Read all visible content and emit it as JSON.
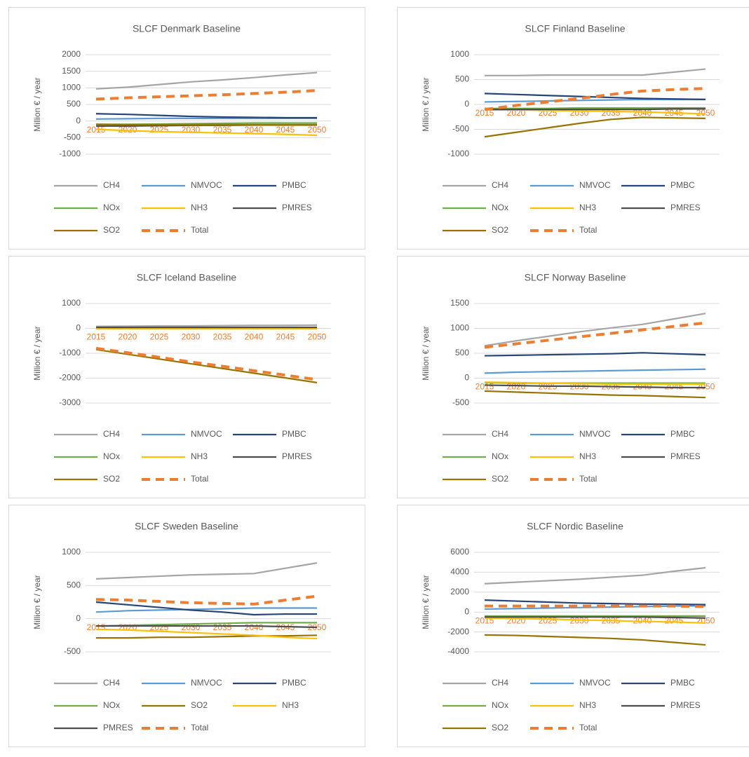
{
  "chart_data": [
    {
      "type": "line",
      "title": "SLCF Denmark Baseline",
      "y_label": "Million € / year",
      "categories": [
        "2015",
        "2020",
        "2025",
        "2030",
        "2035",
        "2040",
        "2045",
        "2050"
      ],
      "ylim": [
        -1000,
        2000
      ],
      "yticks": [
        -1000,
        -500,
        0,
        500,
        1000,
        1500,
        2000
      ],
      "grid": true,
      "category_label_color": "#ed7d31",
      "series": [
        {
          "name": "CH4",
          "color": "#a5a5a5",
          "values": [
            970,
            1020,
            1100,
            1180,
            1240,
            1310,
            1390,
            1460
          ]
        },
        {
          "name": "NMVOC",
          "color": "#5b9bd5",
          "values": [
            60,
            70,
            80,
            80,
            80,
            80,
            80,
            80
          ]
        },
        {
          "name": "PMBC",
          "color": "#264478",
          "values": [
            220,
            200,
            170,
            140,
            120,
            110,
            100,
            100
          ]
        },
        {
          "name": "NOx",
          "color": "#70ad47",
          "values": [
            -100,
            -100,
            -90,
            -80,
            -70,
            -60,
            -60,
            -60
          ]
        },
        {
          "name": "NH3",
          "color": "#ffc000",
          "values": [
            -250,
            -290,
            -320,
            -340,
            -360,
            -380,
            -400,
            -430
          ]
        },
        {
          "name": "PMRES",
          "color": "#4d4d4d",
          "values": [
            -150,
            -150,
            -140,
            -130,
            -130,
            -120,
            -120,
            -120
          ]
        },
        {
          "name": "SO2",
          "color": "#997300",
          "values": [
            -100,
            -110,
            -110,
            -110,
            -110,
            -110,
            -110,
            -110
          ]
        },
        {
          "name": "Total",
          "color": "#ed7d31",
          "dashed": true,
          "values": [
            660,
            700,
            730,
            760,
            790,
            830,
            870,
            920
          ]
        }
      ]
    },
    {
      "type": "line",
      "title": "SLCF Finland Baseline",
      "y_label": "Million € / year",
      "categories": [
        "2015",
        "2020",
        "2025",
        "2030",
        "2035",
        "2040",
        "2045",
        "2050"
      ],
      "ylim": [
        -1000,
        1000
      ],
      "yticks": [
        -1000,
        -500,
        0,
        500,
        1000
      ],
      "grid": true,
      "category_label_color": "#ed7d31",
      "series": [
        {
          "name": "CH4",
          "color": "#a5a5a5",
          "values": [
            580,
            580,
            590,
            590,
            590,
            590,
            650,
            710
          ]
        },
        {
          "name": "NMVOC",
          "color": "#5b9bd5",
          "values": [
            50,
            60,
            70,
            80,
            90,
            100,
            100,
            100
          ]
        },
        {
          "name": "PMBC",
          "color": "#264478",
          "values": [
            220,
            200,
            180,
            160,
            140,
            120,
            110,
            100
          ]
        },
        {
          "name": "NOx",
          "color": "#70ad47",
          "values": [
            -80,
            -80,
            -80,
            -70,
            -70,
            -70,
            -70,
            -70
          ]
        },
        {
          "name": "NH3",
          "color": "#ffc000",
          "values": [
            -110,
            -110,
            -120,
            -130,
            -140,
            -150,
            -170,
            -190
          ]
        },
        {
          "name": "PMRES",
          "color": "#4d4d4d",
          "values": [
            -100,
            -100,
            -100,
            -100,
            -100,
            -100,
            -90,
            -90
          ]
        },
        {
          "name": "SO2",
          "color": "#997300",
          "values": [
            -650,
            -560,
            -470,
            -380,
            -300,
            -260,
            -270,
            -280
          ]
        },
        {
          "name": "Total",
          "color": "#ed7d31",
          "dashed": true,
          "values": [
            -100,
            -20,
            50,
            120,
            200,
            270,
            300,
            320
          ]
        }
      ]
    },
    {
      "type": "line",
      "title": "SLCF Iceland Baseline",
      "y_label": "Million € / year",
      "categories": [
        "2015",
        "2020",
        "2025",
        "2030",
        "2035",
        "2040",
        "2045",
        "2050"
      ],
      "ylim": [
        -3000,
        1000
      ],
      "yticks": [
        -3000,
        -2000,
        -1000,
        0,
        1000
      ],
      "grid": true,
      "category_label_color": "#ed7d31",
      "series": [
        {
          "name": "CH4",
          "color": "#a5a5a5",
          "values": [
            80,
            90,
            100,
            100,
            110,
            120,
            120,
            130
          ]
        },
        {
          "name": "NMVOC",
          "color": "#5b9bd5",
          "values": [
            10,
            10,
            10,
            10,
            10,
            10,
            10,
            10
          ]
        },
        {
          "name": "PMBC",
          "color": "#264478",
          "values": [
            20,
            20,
            20,
            20,
            20,
            20,
            20,
            20
          ]
        },
        {
          "name": "NOx",
          "color": "#70ad47",
          "values": [
            -10,
            -10,
            -10,
            -10,
            -10,
            -10,
            -10,
            -10
          ]
        },
        {
          "name": "NH3",
          "color": "#ffc000",
          "values": [
            -20,
            -20,
            -20,
            -20,
            -20,
            -20,
            -20,
            -20
          ]
        },
        {
          "name": "PMRES",
          "color": "#4d4d4d",
          "values": [
            40,
            40,
            40,
            40,
            40,
            40,
            40,
            40
          ]
        },
        {
          "name": "SO2",
          "color": "#997300",
          "values": [
            -850,
            -1040,
            -1230,
            -1420,
            -1610,
            -1800,
            -1990,
            -2180
          ]
        },
        {
          "name": "Total",
          "color": "#ed7d31",
          "dashed": true,
          "values": [
            -800,
            -980,
            -1160,
            -1350,
            -1520,
            -1700,
            -1880,
            -2060
          ]
        }
      ]
    },
    {
      "type": "line",
      "title": "SLCF Norway Baseline",
      "y_label": "Million € / year",
      "categories": [
        "2015",
        "2020",
        "2025",
        "2030",
        "2035",
        "2040",
        "2045",
        "2050"
      ],
      "ylim": [
        -500,
        1500
      ],
      "yticks": [
        -500,
        0,
        500,
        1000,
        1500
      ],
      "grid": true,
      "category_label_color": "#ed7d31",
      "series": [
        {
          "name": "CH4",
          "color": "#a5a5a5",
          "values": [
            650,
            750,
            840,
            930,
            1010,
            1080,
            1190,
            1300
          ]
        },
        {
          "name": "NMVOC",
          "color": "#5b9bd5",
          "values": [
            100,
            120,
            130,
            140,
            150,
            160,
            170,
            180
          ]
        },
        {
          "name": "PMBC",
          "color": "#264478",
          "values": [
            450,
            460,
            470,
            480,
            490,
            510,
            490,
            470
          ]
        },
        {
          "name": "NOx",
          "color": "#70ad47",
          "values": [
            -90,
            -100,
            -100,
            -100,
            -100,
            -100,
            -100,
            -100
          ]
        },
        {
          "name": "NH3",
          "color": "#ffc000",
          "values": [
            -80,
            -90,
            -100,
            -110,
            -120,
            -120,
            -120,
            -120
          ]
        },
        {
          "name": "PMRES",
          "color": "#4d4d4d",
          "values": [
            -140,
            -150,
            -160,
            -160,
            -170,
            -180,
            -190,
            -190
          ]
        },
        {
          "name": "SO2",
          "color": "#997300",
          "values": [
            -260,
            -280,
            -300,
            -320,
            -340,
            -350,
            -370,
            -390
          ]
        },
        {
          "name": "Total",
          "color": "#ed7d31",
          "dashed": true,
          "values": [
            620,
            690,
            760,
            830,
            900,
            970,
            1040,
            1110
          ]
        }
      ]
    },
    {
      "type": "line",
      "title": "SLCF Sweden Baseline",
      "y_label": "Million € / year",
      "categories": [
        "2015",
        "2020",
        "2025",
        "2030",
        "2035",
        "2040",
        "2045",
        "2050"
      ],
      "ylim": [
        -500,
        1000
      ],
      "yticks": [
        -500,
        0,
        500,
        1000
      ],
      "grid": true,
      "category_label_color": "#ed7d31",
      "series": [
        {
          "name": "CH4",
          "color": "#a5a5a5",
          "values": [
            600,
            620,
            640,
            660,
            670,
            680,
            760,
            840
          ]
        },
        {
          "name": "NMVOC",
          "color": "#5b9bd5",
          "values": [
            100,
            120,
            130,
            140,
            150,
            160,
            160,
            160
          ]
        },
        {
          "name": "PMBC",
          "color": "#264478",
          "values": [
            250,
            210,
            170,
            130,
            100,
            60,
            70,
            70
          ]
        },
        {
          "name": "NOx",
          "color": "#70ad47",
          "values": [
            -110,
            -100,
            -90,
            -80,
            -70,
            -60,
            -60,
            -60
          ]
        },
        {
          "name": "SO2",
          "color": "#997300",
          "values": [
            -290,
            -290,
            -280,
            -280,
            -270,
            -260,
            -260,
            -250
          ]
        },
        {
          "name": "NH3",
          "color": "#ffc000",
          "values": [
            -160,
            -170,
            -190,
            -210,
            -230,
            -250,
            -280,
            -300
          ]
        },
        {
          "name": "PMRES",
          "color": "#4d4d4d",
          "values": [
            -110,
            -110,
            -110,
            -110,
            -110,
            -110,
            -120,
            -130
          ]
        },
        {
          "name": "Total",
          "color": "#ed7d31",
          "dashed": true,
          "values": [
            290,
            280,
            260,
            240,
            230,
            220,
            280,
            340
          ]
        }
      ]
    },
    {
      "type": "line",
      "title": "SLCF Nordic Baseline",
      "y_label": "Million € / year",
      "categories": [
        "2015",
        "2020",
        "2025",
        "2030",
        "2035",
        "2040",
        "2045",
        "2050"
      ],
      "ylim": [
        -4000,
        6000
      ],
      "yticks": [
        -4000,
        -2000,
        0,
        2000,
        4000,
        6000
      ],
      "grid": true,
      "category_label_color": "#ed7d31",
      "series": [
        {
          "name": "CH4",
          "color": "#a5a5a5",
          "values": [
            2850,
            3000,
            3150,
            3300,
            3500,
            3700,
            4100,
            4450
          ]
        },
        {
          "name": "NMVOC",
          "color": "#5b9bd5",
          "values": [
            300,
            350,
            400,
            450,
            500,
            550,
            600,
            620
          ]
        },
        {
          "name": "PMBC",
          "color": "#264478",
          "values": [
            1200,
            1100,
            1000,
            900,
            850,
            800,
            780,
            750
          ]
        },
        {
          "name": "NOx",
          "color": "#70ad47",
          "values": [
            -400,
            -400,
            -400,
            -400,
            -400,
            -400,
            -400,
            -400
          ]
        },
        {
          "name": "NH3",
          "color": "#ffc000",
          "values": [
            -600,
            -650,
            -700,
            -800,
            -850,
            -950,
            -1000,
            -1100
          ]
        },
        {
          "name": "PMRES",
          "color": "#4d4d4d",
          "values": [
            -500,
            -500,
            -500,
            -500,
            -500,
            -500,
            -550,
            -600
          ]
        },
        {
          "name": "SO2",
          "color": "#997300",
          "values": [
            -2300,
            -2350,
            -2450,
            -2550,
            -2650,
            -2800,
            -3050,
            -3300
          ]
        },
        {
          "name": "Total",
          "color": "#ed7d31",
          "dashed": true,
          "values": [
            600,
            600,
            600,
            600,
            600,
            600,
            600,
            550
          ]
        }
      ]
    }
  ]
}
